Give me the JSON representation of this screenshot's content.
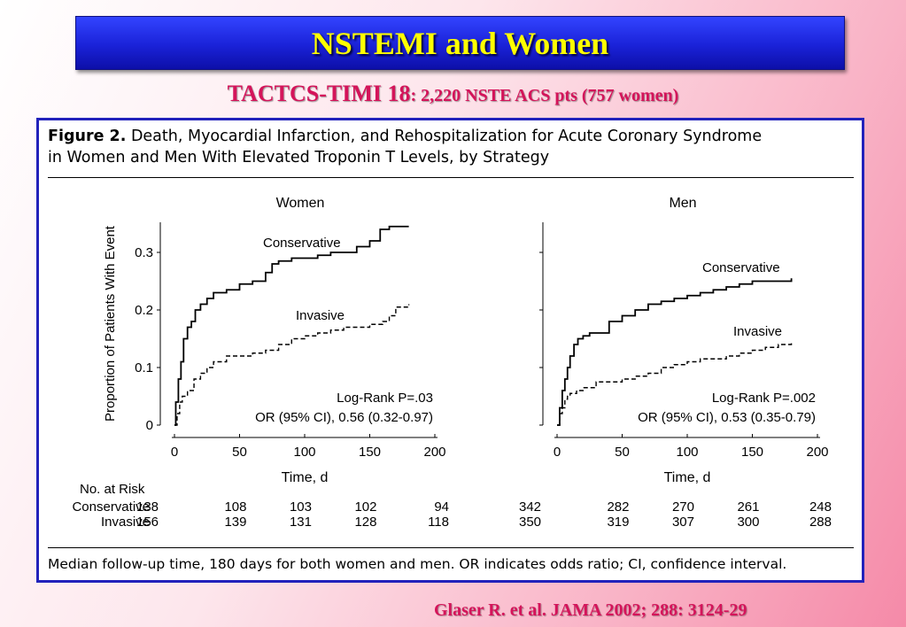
{
  "slide": {
    "title": "NSTEMI and Women",
    "subtitle_main": "TACTCS-TIMI 18",
    "subtitle_rest": ": 2,220 NSTE ACS pts (757 women)",
    "citation": "Glaser R. et al. JAMA 2002; 288: 3124-29"
  },
  "figure": {
    "label": "Figure 2.",
    "caption_line1": "Death, Myocardial Infarction, and Rehospitalization for Acute Coronary Syndrome",
    "caption_line2": "in Women and Men With Elevated Troponin T Levels, by Strategy",
    "footnote": "Median follow-up time, 180 days for both women and men. OR indicates odds ratio; CI, confidence interval.",
    "ylabel": "Proportion of Patients With Event",
    "xlabel": "Time, d",
    "risk_header": "No. at Risk",
    "risk_row_labels": [
      "Conservative",
      "Invasive"
    ]
  },
  "chart_data": [
    {
      "type": "line",
      "title": "Women",
      "xlabel": "Time, d",
      "ylabel": "Proportion of Patients With Event",
      "xlim": [
        0,
        200
      ],
      "ylim": [
        0,
        0.35
      ],
      "x_ticks": [
        "0",
        "50",
        "100",
        "150",
        "200"
      ],
      "y_ticks": [
        "0",
        "0.1",
        "0.2",
        "0.3"
      ],
      "stats": {
        "logrank": "Log-Rank P=.03",
        "or": "OR (95% CI), 0.56 (0.32-0.97)"
      },
      "series": [
        {
          "name": "Conservative",
          "style": "solid",
          "x": [
            0,
            1,
            3,
            5,
            7,
            10,
            13,
            16,
            20,
            25,
            30,
            40,
            50,
            60,
            70,
            75,
            80,
            90,
            100,
            110,
            120,
            130,
            140,
            150,
            158,
            165,
            180
          ],
          "y": [
            0,
            0.04,
            0.08,
            0.11,
            0.15,
            0.17,
            0.18,
            0.2,
            0.21,
            0.22,
            0.23,
            0.235,
            0.245,
            0.25,
            0.265,
            0.28,
            0.285,
            0.29,
            0.29,
            0.295,
            0.3,
            0.3,
            0.31,
            0.32,
            0.34,
            0.345,
            0.345
          ]
        },
        {
          "name": "Invasive",
          "style": "dashed",
          "x": [
            0,
            2,
            4,
            6,
            10,
            15,
            20,
            25,
            30,
            40,
            50,
            60,
            70,
            80,
            90,
            100,
            110,
            120,
            130,
            140,
            150,
            160,
            165,
            170,
            180
          ],
          "y": [
            0,
            0.02,
            0.04,
            0.05,
            0.06,
            0.08,
            0.09,
            0.1,
            0.11,
            0.12,
            0.12,
            0.125,
            0.13,
            0.14,
            0.15,
            0.155,
            0.16,
            0.165,
            0.17,
            0.17,
            0.175,
            0.18,
            0.19,
            0.205,
            0.21
          ]
        }
      ],
      "at_risk": {
        "Conservative": [
          "138",
          "108",
          "103",
          "102",
          "94"
        ],
        "Invasive": [
          "156",
          "139",
          "131",
          "128",
          "118"
        ]
      }
    },
    {
      "type": "line",
      "title": "Men",
      "xlabel": "Time, d",
      "ylabel": "",
      "xlim": [
        0,
        200
      ],
      "ylim": [
        0,
        0.35
      ],
      "x_ticks": [
        "0",
        "50",
        "100",
        "150",
        "200"
      ],
      "y_ticks": [],
      "stats": {
        "logrank": "Log-Rank P=.002",
        "or": "OR (95% CI), 0.53 (0.35-0.79)"
      },
      "series": [
        {
          "name": "Conservative",
          "style": "solid",
          "x": [
            0,
            2,
            4,
            6,
            8,
            10,
            13,
            16,
            20,
            25,
            30,
            40,
            50,
            60,
            70,
            80,
            90,
            100,
            110,
            120,
            130,
            140,
            150,
            160,
            170,
            180
          ],
          "y": [
            0,
            0.03,
            0.06,
            0.08,
            0.1,
            0.12,
            0.14,
            0.15,
            0.155,
            0.16,
            0.16,
            0.18,
            0.19,
            0.2,
            0.21,
            0.215,
            0.22,
            0.225,
            0.23,
            0.235,
            0.24,
            0.245,
            0.25,
            0.25,
            0.25,
            0.255
          ]
        },
        {
          "name": "Invasive",
          "style": "dashed",
          "x": [
            0,
            2,
            4,
            6,
            8,
            10,
            15,
            20,
            30,
            40,
            50,
            60,
            70,
            80,
            90,
            100,
            110,
            120,
            130,
            140,
            150,
            160,
            170,
            180
          ],
          "y": [
            0,
            0.02,
            0.03,
            0.045,
            0.05,
            0.055,
            0.06,
            0.065,
            0.075,
            0.075,
            0.08,
            0.085,
            0.09,
            0.1,
            0.105,
            0.11,
            0.115,
            0.115,
            0.12,
            0.125,
            0.13,
            0.135,
            0.14,
            0.145
          ]
        }
      ],
      "at_risk": {
        "Conservative": [
          "342",
          "282",
          "270",
          "261",
          "248"
        ],
        "Invasive": [
          "350",
          "319",
          "307",
          "300",
          "288"
        ]
      }
    }
  ]
}
